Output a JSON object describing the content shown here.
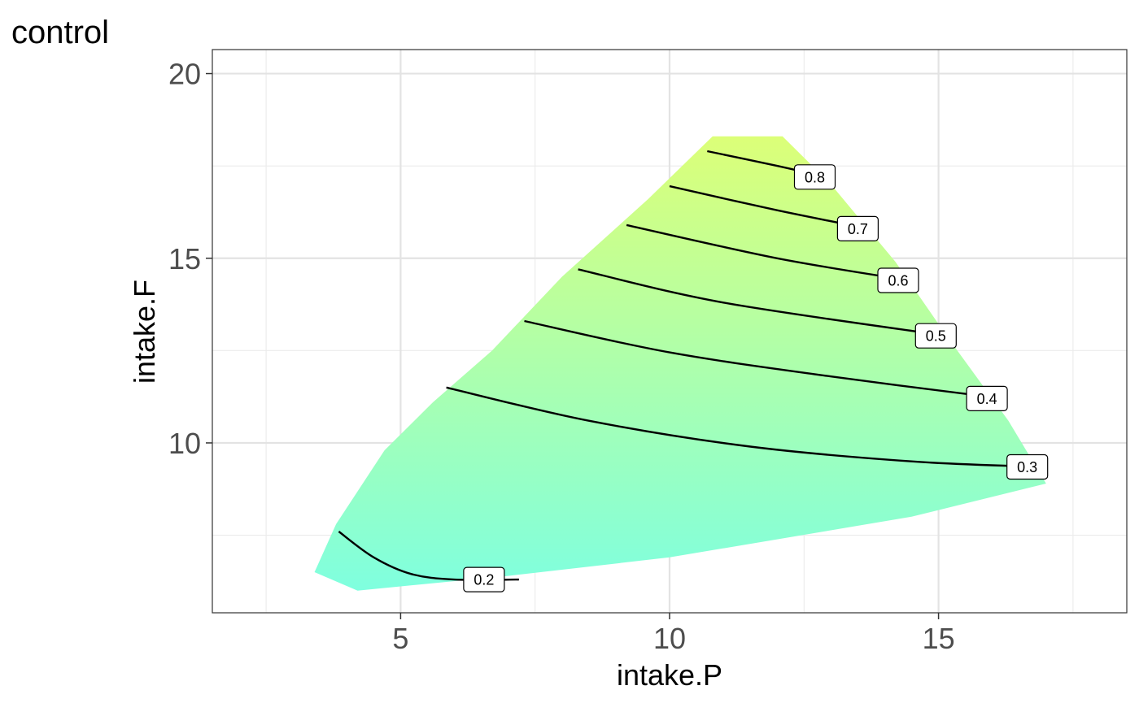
{
  "chart_data": {
    "type": "contour",
    "title": "control",
    "xlabel": "intake.P",
    "ylabel": "intake.F",
    "xlim": [
      1.5,
      18.5
    ],
    "ylim": [
      5.4,
      20.65
    ],
    "x_ticks": [
      5,
      10,
      15
    ],
    "x_tick_labels": [
      "5",
      "10",
      "15"
    ],
    "x_minor_ticks": [
      2.5,
      7.5,
      12.5,
      17.5
    ],
    "y_ticks": [
      10,
      15,
      20
    ],
    "y_tick_labels": [
      "10",
      "15",
      "20"
    ],
    "y_minor_ticks": [
      7.5,
      12.5,
      17.5
    ],
    "grid": true,
    "legend": "none",
    "fill_low_color": "#7fffdf",
    "fill_high_color": "#dcff78",
    "region_boundary": [
      {
        "x": 3.4,
        "y": 6.5
      },
      {
        "x": 3.8,
        "y": 7.8
      },
      {
        "x": 4.7,
        "y": 9.8
      },
      {
        "x": 5.6,
        "y": 11.1
      },
      {
        "x": 6.7,
        "y": 12.5
      },
      {
        "x": 8.0,
        "y": 14.5
      },
      {
        "x": 9.6,
        "y": 16.6
      },
      {
        "x": 10.8,
        "y": 18.3
      },
      {
        "x": 12.1,
        "y": 18.3
      },
      {
        "x": 13.0,
        "y": 17.0
      },
      {
        "x": 14.2,
        "y": 14.9
      },
      {
        "x": 15.2,
        "y": 12.8
      },
      {
        "x": 16.3,
        "y": 10.6
      },
      {
        "x": 17.0,
        "y": 8.9
      },
      {
        "x": 14.5,
        "y": 8.0
      },
      {
        "x": 10.0,
        "y": 6.9
      },
      {
        "x": 7.0,
        "y": 6.4
      },
      {
        "x": 4.2,
        "y": 6.0
      }
    ],
    "contours": [
      {
        "level": "0.2",
        "points": [
          {
            "x": 3.85,
            "y": 7.6
          },
          {
            "x": 4.5,
            "y": 6.9
          },
          {
            "x": 5.2,
            "y": 6.45
          },
          {
            "x": 6.0,
            "y": 6.3
          },
          {
            "x": 7.2,
            "y": 6.3
          }
        ],
        "label_at": {
          "x": 6.55,
          "y": 6.3
        }
      },
      {
        "level": "0.3",
        "points": [
          {
            "x": 5.85,
            "y": 11.5
          },
          {
            "x": 8.5,
            "y": 10.6
          },
          {
            "x": 11.5,
            "y": 9.9
          },
          {
            "x": 14.5,
            "y": 9.5
          },
          {
            "x": 16.9,
            "y": 9.35
          }
        ],
        "label_at": {
          "x": 16.65,
          "y": 9.35
        }
      },
      {
        "level": "0.4",
        "points": [
          {
            "x": 7.3,
            "y": 13.3
          },
          {
            "x": 10.0,
            "y": 12.45
          },
          {
            "x": 13.0,
            "y": 11.8
          },
          {
            "x": 16.2,
            "y": 11.2
          }
        ],
        "label_at": {
          "x": 15.9,
          "y": 11.2
        }
      },
      {
        "level": "0.5",
        "points": [
          {
            "x": 8.3,
            "y": 14.7
          },
          {
            "x": 11.0,
            "y": 13.8
          },
          {
            "x": 15.15,
            "y": 12.9
          }
        ],
        "label_at": {
          "x": 14.95,
          "y": 12.9
        }
      },
      {
        "level": "0.6",
        "points": [
          {
            "x": 9.2,
            "y": 15.9
          },
          {
            "x": 12.0,
            "y": 15.0
          },
          {
            "x": 14.45,
            "y": 14.4
          }
        ],
        "label_at": {
          "x": 14.25,
          "y": 14.4
        }
      },
      {
        "level": "0.7",
        "points": [
          {
            "x": 10.0,
            "y": 16.95
          },
          {
            "x": 12.0,
            "y": 16.3
          },
          {
            "x": 13.7,
            "y": 15.8
          }
        ],
        "label_at": {
          "x": 13.5,
          "y": 15.8
        }
      },
      {
        "level": "0.8",
        "points": [
          {
            "x": 10.7,
            "y": 17.9
          },
          {
            "x": 12.0,
            "y": 17.5
          },
          {
            "x": 12.9,
            "y": 17.2
          }
        ],
        "label_at": {
          "x": 12.7,
          "y": 17.2
        }
      }
    ]
  }
}
